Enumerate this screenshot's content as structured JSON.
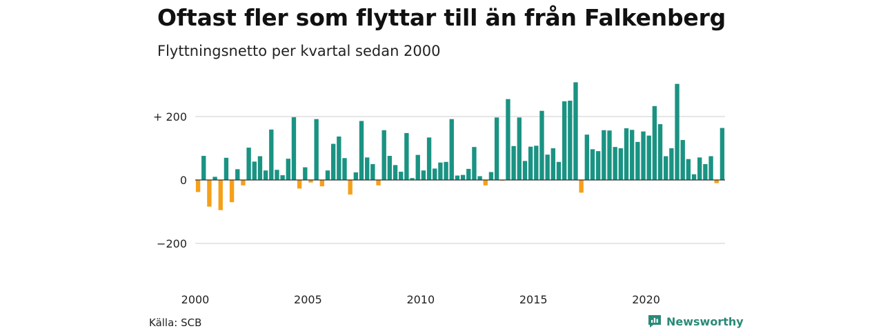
{
  "title": "Oftast fler som flyttar till än från Falkenberg",
  "subtitle": "Flyttningsnetto per kvartal sedan 2000",
  "source": "Källa: SCB",
  "brand": {
    "name": "Newsworthy",
    "icon": "newsworthy-logo-icon",
    "color": "#2a8a78"
  },
  "colors": {
    "positive": "#1a9383",
    "negative": "#f5a01a",
    "grid": "#dddddd",
    "zero_line": "#333333"
  },
  "chart_data": {
    "type": "bar",
    "title": "Oftast fler som flyttar till än från Falkenberg",
    "subtitle": "Flyttningsnetto per kvartal sedan 2000",
    "xlabel": "",
    "ylabel": "",
    "ylim": [
      -300,
      310
    ],
    "grid": true,
    "y_ticks": [
      {
        "value": 200,
        "label": "+ 200"
      },
      {
        "value": 0,
        "label": "0"
      },
      {
        "value": -200,
        "label": "−200"
      }
    ],
    "x_ticks": [
      "2000",
      "2005",
      "2010",
      "2015",
      "2020"
    ],
    "x_tick_years": [
      2000,
      2005,
      2010,
      2015,
      2020
    ],
    "start_year": 2000,
    "periods": [
      "2000K1",
      "2000K2",
      "2000K3",
      "2000K4",
      "2001K1",
      "2001K2",
      "2001K3",
      "2001K4",
      "2002K1",
      "2002K2",
      "2002K3",
      "2002K4",
      "2003K1",
      "2003K2",
      "2003K3",
      "2003K4",
      "2004K1",
      "2004K2",
      "2004K3",
      "2004K4",
      "2005K1",
      "2005K2",
      "2005K3",
      "2005K4",
      "2006K1",
      "2006K2",
      "2006K3",
      "2006K4",
      "2007K1",
      "2007K2",
      "2007K3",
      "2007K4",
      "2008K1",
      "2008K2",
      "2008K3",
      "2008K4",
      "2009K1",
      "2009K2",
      "2009K3",
      "2009K4",
      "2010K1",
      "2010K2",
      "2010K3",
      "2010K4",
      "2011K1",
      "2011K2",
      "2011K3",
      "2011K4",
      "2012K1",
      "2012K2",
      "2012K3",
      "2012K4",
      "2013K1",
      "2013K2",
      "2013K3",
      "2013K4",
      "2014K1",
      "2014K2",
      "2014K3",
      "2014K4",
      "2015K1",
      "2015K2",
      "2015K3",
      "2015K4",
      "2016K1",
      "2016K2",
      "2016K3",
      "2016K4",
      "2017K1",
      "2017K2",
      "2017K3",
      "2017K4",
      "2018K1",
      "2018K2",
      "2018K3",
      "2018K4",
      "2019K1",
      "2019K2",
      "2019K3",
      "2019K4",
      "2020K1",
      "2020K2",
      "2020K3",
      "2020K4",
      "2021K1",
      "2021K2",
      "2021K3",
      "2021K4",
      "2022K1",
      "2022K2",
      "2022K3",
      "2022K4",
      "2023K1",
      "2023K2"
    ],
    "values": [
      -38,
      76,
      -84,
      10,
      -95,
      70,
      -70,
      34,
      -17,
      102,
      58,
      75,
      30,
      159,
      32,
      15,
      67,
      198,
      -27,
      40,
      -8,
      192,
      -20,
      30,
      114,
      137,
      69,
      -46,
      24,
      186,
      71,
      50,
      -17,
      157,
      76,
      47,
      26,
      148,
      6,
      79,
      30,
      134,
      36,
      55,
      57,
      192,
      14,
      16,
      35,
      104,
      12,
      -17,
      25,
      197,
      -2,
      255,
      107,
      197,
      60,
      105,
      108,
      218,
      80,
      100,
      57,
      248,
      250,
      308,
      -40,
      143,
      97,
      91,
      157,
      156,
      104,
      100,
      163,
      158,
      120,
      153,
      140,
      233,
      176,
      75,
      100,
      303,
      126,
      66,
      18,
      71,
      50,
      75,
      -10,
      164
    ]
  }
}
